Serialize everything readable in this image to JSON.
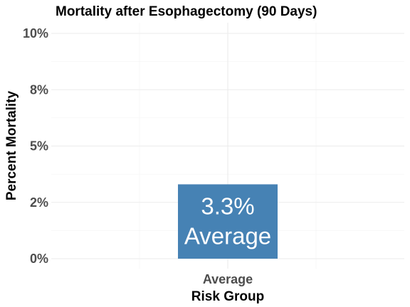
{
  "chart_data": {
    "type": "bar",
    "title": "Mortality after Esophagectomy (90 Days)",
    "xlabel": "Risk Group",
    "ylabel": "Percent Mortality",
    "categories": [
      "Average"
    ],
    "values": [
      3.3
    ],
    "data_labels": [
      [
        "3.3%",
        "Average"
      ]
    ],
    "ylim": [
      0,
      10
    ],
    "yticks": [
      0,
      2.5,
      5,
      7.5,
      10
    ],
    "ytick_labels": [
      "0%",
      "2%",
      "5%",
      "8%",
      "10%"
    ],
    "grid": true,
    "legend": "none",
    "bar_color": "#4682b4"
  }
}
